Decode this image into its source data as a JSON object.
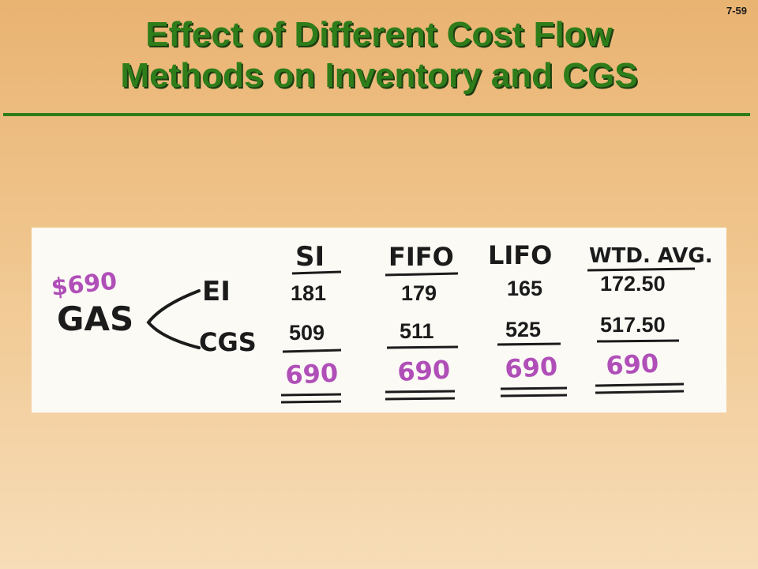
{
  "slide_number": "7-59",
  "title": {
    "line1": "Effect of Different Cost Flow",
    "line2": "Methods on Inventory and CGS"
  },
  "illustration": {
    "goods_available_amount": "$690",
    "goods_available_label": "GAS",
    "ending_inventory_label": "EI",
    "cost_of_goods_sold_label": "CGS",
    "columns": [
      {
        "method": "SI",
        "ending_inventory": "181",
        "cost_of_goods_sold": "509",
        "total": "690"
      },
      {
        "method": "FIFO",
        "ending_inventory": "179",
        "cost_of_goods_sold": "511",
        "total": "690"
      },
      {
        "method": "LIFO",
        "ending_inventory": "165",
        "cost_of_goods_sold": "525",
        "total": "690"
      },
      {
        "method": "WTD. AVG.",
        "ending_inventory": "172.50",
        "cost_of_goods_sold": "517.50",
        "total": "690"
      }
    ],
    "colors": {
      "ink": "#1b1b1b",
      "totals": "#b04fb8",
      "title_green": "#2e7d1a"
    }
  }
}
